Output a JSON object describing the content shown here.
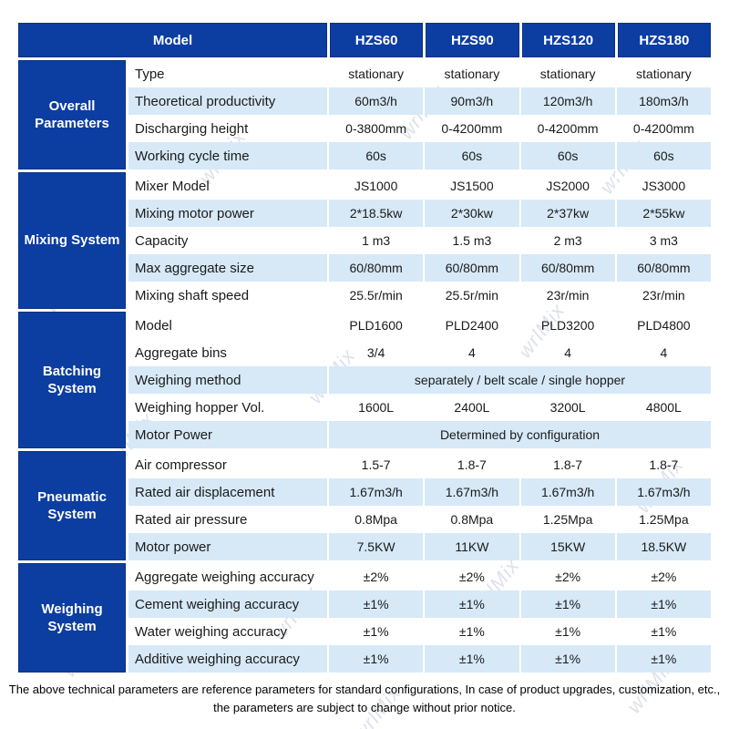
{
  "watermark": {
    "text": "wrlMix"
  },
  "colors": {
    "header_blue": "#0c3da1",
    "tint_blue": "#d7e9f7",
    "text": "#1a1a1a"
  },
  "table": {
    "header": {
      "model_label": "Model",
      "columns": [
        "HZS60",
        "HZS90",
        "HZS120",
        "HZS180"
      ]
    },
    "sections": [
      {
        "group": "Overall Parameters",
        "rows": [
          {
            "label": "Type",
            "values": [
              "stationary",
              "stationary",
              "stationary",
              "stationary"
            ],
            "tint": false
          },
          {
            "label": "Theoretical productivity",
            "values": [
              "60m3/h",
              "90m3/h",
              "120m3/h",
              "180m3/h"
            ],
            "tint": true
          },
          {
            "label": "Discharging height",
            "values": [
              "0-3800mm",
              "0-4200mm",
              "0-4200mm",
              "0-4200mm"
            ],
            "tint": false
          },
          {
            "label": "Working cycle time",
            "values": [
              "60s",
              "60s",
              "60s",
              "60s"
            ],
            "tint": true
          }
        ]
      },
      {
        "group": "Mixing System",
        "rows": [
          {
            "label": "Mixer Model",
            "values": [
              "JS1000",
              "JS1500",
              "JS2000",
              "JS3000"
            ],
            "tint": false
          },
          {
            "label": "Mixing motor power",
            "values": [
              "2*18.5kw",
              "2*30kw",
              "2*37kw",
              "2*55kw"
            ],
            "tint": true
          },
          {
            "label": "Capacity",
            "values": [
              "1 m3",
              "1.5 m3",
              "2 m3",
              "3 m3"
            ],
            "tint": false
          },
          {
            "label": "Max aggregate size",
            "values": [
              "60/80mm",
              "60/80mm",
              "60/80mm",
              "60/80mm"
            ],
            "tint": true
          },
          {
            "label": "Mixing shaft speed",
            "values": [
              "25.5r/min",
              "25.5r/min",
              "23r/min",
              "23r/min"
            ],
            "tint": false
          }
        ]
      },
      {
        "group": "Batching System",
        "rows": [
          {
            "label": "Model",
            "values": [
              "PLD1600",
              "PLD2400",
              "PLD3200",
              "PLD4800"
            ],
            "tint": false
          },
          {
            "label": "Aggregate bins",
            "values": [
              "3/4",
              "4",
              "4",
              "4"
            ],
            "tint": false
          },
          {
            "label": "Weighing method",
            "span": "separately  / belt scale / single hopper",
            "tint": true
          },
          {
            "label": "Weighing hopper Vol.",
            "values": [
              "1600L",
              "2400L",
              "3200L",
              "4800L"
            ],
            "tint": false
          },
          {
            "label": "Motor Power",
            "span": "Determined by configuration",
            "tint": true
          }
        ]
      },
      {
        "group": "Pneumatic System",
        "rows": [
          {
            "label": "Air compressor",
            "values": [
              "1.5-7",
              "1.8-7",
              "1.8-7",
              "1.8-7"
            ],
            "tint": false
          },
          {
            "label": "Rated air displacement",
            "values": [
              "1.67m3/h",
              "1.67m3/h",
              "1.67m3/h",
              "1.67m3/h"
            ],
            "tint": true
          },
          {
            "label": "Rated air pressure",
            "values": [
              "0.8Mpa",
              "0.8Mpa",
              "1.25Mpa",
              "1.25Mpa"
            ],
            "tint": false
          },
          {
            "label": "Motor power",
            "values": [
              "7.5KW",
              "11KW",
              "15KW",
              "18.5KW"
            ],
            "tint": true
          }
        ]
      },
      {
        "group": "Weighing System",
        "rows": [
          {
            "label": "Aggregate weighing accuracy",
            "values": [
              "±2%",
              "±2%",
              "±2%",
              "±2%"
            ],
            "tint": false
          },
          {
            "label": "Cement weighing accuracy",
            "values": [
              "±1%",
              "±1%",
              "±1%",
              "±1%"
            ],
            "tint": true
          },
          {
            "label": "Water weighing accuracy",
            "values": [
              "±1%",
              "±1%",
              "±1%",
              "±1%"
            ],
            "tint": false
          },
          {
            "label": "Additive weighing accuracy",
            "values": [
              "±1%",
              "±1%",
              "±1%",
              "±1%"
            ],
            "tint": true
          }
        ]
      }
    ]
  },
  "footer": {
    "line1": "The above technical parameters are reference parameters for standard configurations, In case of  product upgrades, customization, etc.,",
    "line2": "the parameters are subject to change without prior notice."
  }
}
